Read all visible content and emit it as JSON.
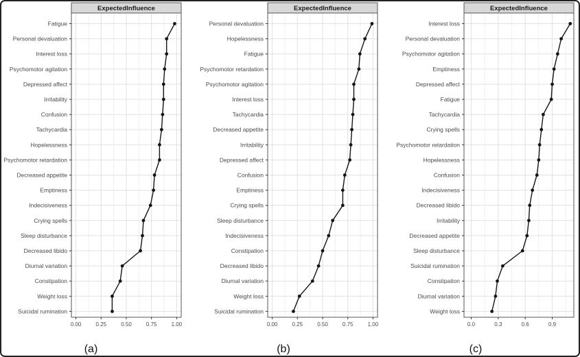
{
  "colors": {
    "background": "#ffffff",
    "outer_border": "#222222",
    "strip_fill": "#d8d8d8",
    "strip_border": "#555555",
    "strip_text": "#1a1a1a",
    "panel_border": "#555555",
    "grid_major": "#e1e1e1",
    "grid_minor": "#efefef",
    "series": "#141414",
    "axis_text": "#4a4a4a",
    "tick_mark": "#333333",
    "caption_text": "#111111"
  },
  "chart_data": [
    {
      "type": "line",
      "orientation": "horizontal-dotline",
      "title": "ExpectedInfluence",
      "panel_caption": "(a)",
      "categories": [
        "Fatigue",
        "Personal devaluation",
        "Interest loss",
        "Psychomotor agitation",
        "Depressed affect",
        "Irritability",
        "Confusion",
        "Tachycardia",
        "Hopelessness",
        "Psychomotor retardation",
        "Decreased appetite",
        "Emptiness",
        "Indecisiveness",
        "Crying spells",
        "Sleep disturbance",
        "Decreased libido",
        "Diurnal variation",
        "Constipation",
        "Weight loss",
        "Suicidal rumination"
      ],
      "values": [
        0.98,
        0.9,
        0.9,
        0.88,
        0.87,
        0.87,
        0.86,
        0.85,
        0.83,
        0.83,
        0.78,
        0.77,
        0.74,
        0.67,
        0.66,
        0.64,
        0.46,
        0.44,
        0.36,
        0.36
      ],
      "x_ticks": [
        0,
        0.25,
        0.5,
        0.75,
        1.0
      ],
      "x_tick_labels": [
        "0.00",
        "0.25",
        "0.50",
        "0.75",
        "1.00"
      ],
      "xlim": [
        -0.045,
        1.045
      ],
      "grid": true,
      "xlabel": "",
      "ylabel": ""
    },
    {
      "type": "line",
      "orientation": "horizontal-dotline",
      "title": "ExpectedInfluence",
      "panel_caption": "(b)",
      "categories": [
        "Personal devaluation",
        "Hopelessness",
        "Fatigue",
        "Psychomotor retardation",
        "Psychomotor agitation",
        "Interest loss",
        "Tachycardia",
        "Decreased appetite",
        "Irritability",
        "Depressed affect",
        "Confusion",
        "Emptiness",
        "Crying spells",
        "Sleep disturbance",
        "Indecisiveness",
        "Constipation",
        "Decreased libido",
        "Diurnal variation",
        "Weight loss",
        "Suicidal rumination"
      ],
      "values": [
        0.99,
        0.92,
        0.87,
        0.86,
        0.81,
        0.81,
        0.8,
        0.79,
        0.78,
        0.77,
        0.72,
        0.7,
        0.7,
        0.6,
        0.56,
        0.5,
        0.46,
        0.4,
        0.27,
        0.21
      ],
      "x_ticks": [
        0,
        0.25,
        0.5,
        0.75,
        1.0
      ],
      "x_tick_labels": [
        "0.00",
        "0.25",
        "0.50",
        "0.75",
        "1.00"
      ],
      "xlim": [
        -0.045,
        1.045
      ],
      "grid": true,
      "xlabel": "",
      "ylabel": ""
    },
    {
      "type": "line",
      "orientation": "horizontal-dotline",
      "title": "ExpectedInfluence",
      "panel_caption": "(c)",
      "categories": [
        "Interest loss",
        "Personal devaluation",
        "Psychomotor agitation",
        "Emptiness",
        "Depressed affect",
        "Fatigue",
        "Tachycardia",
        "Crying spells",
        "Psychomotor retardation",
        "Hopelessness",
        "Confusion",
        "Indecisiveness",
        "Decreased libido",
        "Irritability",
        "Decreased appetite",
        "Sleep disturbance",
        "Suicidal rumination",
        "Constipation",
        "Diurnal variation",
        "Weight loss"
      ],
      "values": [
        1.1,
        1.0,
        0.96,
        0.92,
        0.9,
        0.89,
        0.8,
        0.78,
        0.76,
        0.75,
        0.73,
        0.68,
        0.65,
        0.64,
        0.62,
        0.57,
        0.35,
        0.29,
        0.27,
        0.23
      ],
      "x_ticks": [
        0,
        0.3,
        0.6,
        0.9
      ],
      "x_tick_labels": [
        "0.0",
        "0.3",
        "0.6",
        "0.9"
      ],
      "xlim": [
        -0.08,
        1.14
      ],
      "grid": true,
      "xlabel": "",
      "ylabel": ""
    }
  ]
}
